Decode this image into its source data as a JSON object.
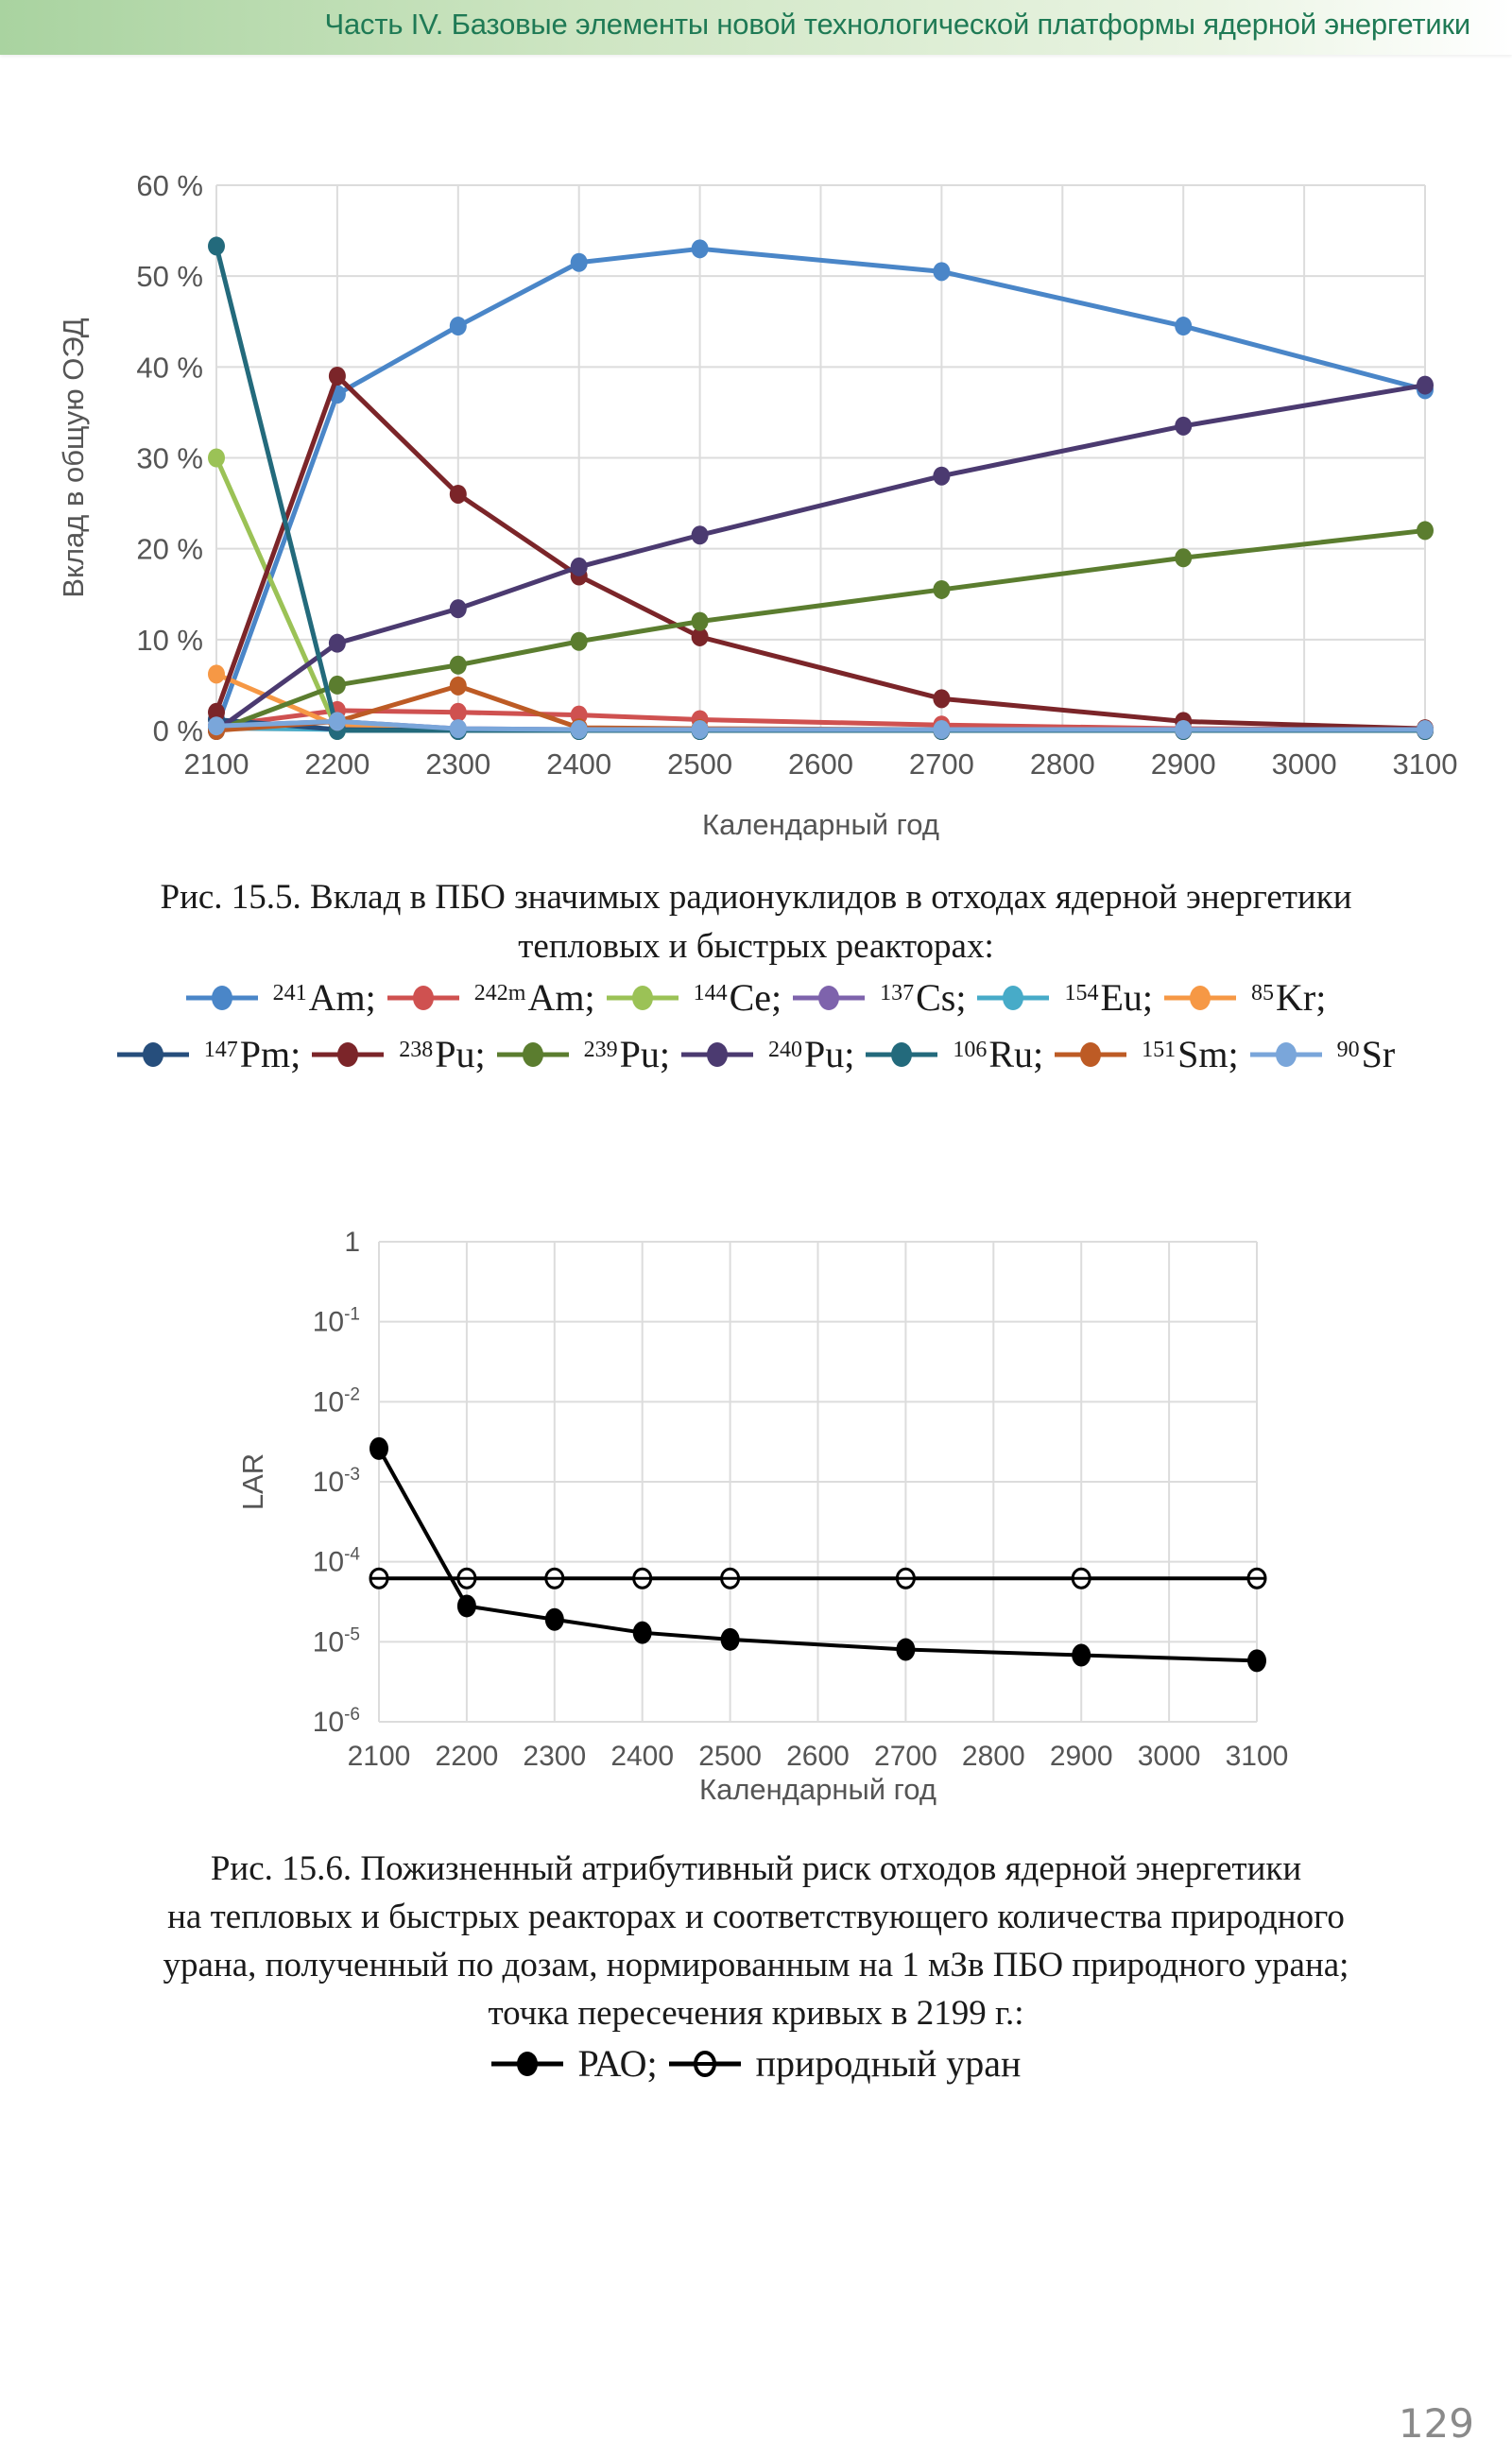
{
  "header": {
    "title": "Часть IV. Базовые элементы новой технологической платформы ядерной энергетики"
  },
  "figure1": {
    "caption_line1": "Рис. 15.5. Вклад в ПБО значимых радионуклидов в отходах ядерной энергетики",
    "caption_line2": "тепловых и быстрых реакторах:"
  },
  "figure2": {
    "caption_lines": [
      "Рис. 15.6. Пожизненный атрибутивный риск отходов ядерной энергетики",
      "на тепловых и быстрых реакторах и соответствующего количества природного",
      "урана, полученный по дозам, нормированным на 1 мЗв ПБО природного урана;",
      "точка пересечения кривых в 2199 г.:"
    ],
    "legend": [
      {
        "label": "РАО;",
        "marker": "filled"
      },
      {
        "label": "природный уран",
        "marker": "open"
      }
    ]
  },
  "page_number": "129",
  "chart_data": [
    {
      "type": "line",
      "title": "",
      "xlabel": "Календарный год",
      "ylabel": "Вклад в общую ОЭД",
      "xlim": [
        2100,
        3100
      ],
      "ylim": [
        0,
        60
      ],
      "x_ticks": [
        "2100",
        "2200",
        "2300",
        "2400",
        "2500",
        "2600",
        "2700",
        "2800",
        "2900",
        "3000",
        "3100"
      ],
      "y_ticks": [
        "0 %",
        "10 %",
        "20 %",
        "30 %",
        "40 %",
        "50 %",
        "60 %"
      ],
      "y_tick_values": [
        0,
        10,
        20,
        30,
        40,
        50,
        60
      ],
      "grid": true,
      "legend_placement": "below",
      "x": [
        2100,
        2200,
        2300,
        2400,
        2500,
        2700,
        2900,
        3100
      ],
      "series": [
        {
          "name": "Am",
          "mass": "241",
          "color": "#4a86c8",
          "values": [
            0.3,
            37,
            44.5,
            51.5,
            53,
            50.5,
            44.5,
            37.5
          ]
        },
        {
          "name": "Am",
          "mass": "242m",
          "color": "#cf5150",
          "values": [
            0.5,
            2.2,
            2.0,
            1.7,
            1.2,
            0.6,
            0.2,
            0.1
          ]
        },
        {
          "name": "Ce",
          "mass": "144",
          "color": "#9bc256",
          "values": [
            30,
            0,
            0,
            0,
            0,
            0,
            0,
            0
          ]
        },
        {
          "name": "Cs",
          "mass": "137",
          "color": "#7e63ac",
          "values": [
            0.5,
            1.0,
            0.2,
            0.1,
            0,
            0,
            0,
            0
          ]
        },
        {
          "name": "Eu",
          "mass": "154",
          "color": "#47abc8",
          "values": [
            0.3,
            0.1,
            0,
            0,
            0,
            0,
            0,
            0
          ]
        },
        {
          "name": "Kr",
          "mass": "85",
          "color": "#f69845",
          "values": [
            6.2,
            0.5,
            0,
            0,
            0,
            0,
            0,
            0
          ]
        },
        {
          "name": "Pm",
          "mass": "147",
          "color": "#264e7c",
          "values": [
            1.2,
            0.1,
            0,
            0,
            0,
            0,
            0,
            0
          ]
        },
        {
          "name": "Pu",
          "mass": "238",
          "color": "#7b2529",
          "values": [
            2,
            39,
            26,
            17,
            10.3,
            3.5,
            1.0,
            0.2
          ]
        },
        {
          "name": "Pu",
          "mass": "239",
          "color": "#5b7d2f",
          "values": [
            0,
            5,
            7.2,
            9.8,
            12,
            15.5,
            19,
            22
          ]
        },
        {
          "name": "Pu",
          "mass": "240",
          "color": "#4b3a70",
          "values": [
            0,
            9.6,
            13.4,
            18,
            21.5,
            28,
            33.5,
            38
          ]
        },
        {
          "name": "Ru",
          "mass": "106",
          "color": "#236a7c",
          "values": [
            53.3,
            0,
            0,
            0,
            0,
            0,
            0,
            0
          ]
        },
        {
          "name": "Sm",
          "mass": "151",
          "color": "#bd5b25",
          "values": [
            0,
            1.0,
            4.9,
            0.3,
            0.2,
            0.1,
            0.1,
            0.1
          ]
        },
        {
          "name": "Sr",
          "mass": "90",
          "color": "#7aa6da",
          "values": [
            0.5,
            1.0,
            0.2,
            0.1,
            0.1,
            0.1,
            0.1,
            0.1
          ]
        }
      ]
    },
    {
      "type": "line",
      "title": "",
      "xlabel": "Календарный год",
      "ylabel": "LAR",
      "yscale": "log",
      "xlim": [
        2100,
        3100
      ],
      "ylim": [
        1e-06,
        1
      ],
      "x_ticks": [
        "2100",
        "2200",
        "2300",
        "2400",
        "2500",
        "2600",
        "2700",
        "2800",
        "2900",
        "3000",
        "3100"
      ],
      "y_ticks": [
        {
          "base": "1",
          "exp": ""
        },
        {
          "base": "10",
          "exp": "-1"
        },
        {
          "base": "10",
          "exp": "-2"
        },
        {
          "base": "10",
          "exp": "-3"
        },
        {
          "base": "10",
          "exp": "-4"
        },
        {
          "base": "10",
          "exp": "-5"
        },
        {
          "base": "10",
          "exp": "-6"
        }
      ],
      "y_tick_values": [
        1,
        0.1,
        0.01,
        0.001,
        0.0001,
        1e-05,
        1e-06
      ],
      "grid": true,
      "legend_placement": "below",
      "x": [
        2100,
        2200,
        2300,
        2400,
        2500,
        2700,
        2900,
        3100
      ],
      "series": [
        {
          "name": "РАО",
          "marker": "filled",
          "color": "#000000",
          "values": [
            0.0026,
            2.8e-05,
            1.9e-05,
            1.3e-05,
            1.07e-05,
            8e-06,
            6.8e-06,
            5.8e-06
          ]
        },
        {
          "name": "природный уран",
          "marker": "open",
          "color": "#000000",
          "values": [
            6.2e-05,
            6.2e-05,
            6.2e-05,
            6.2e-05,
            6.2e-05,
            6.2e-05,
            6.2e-05,
            6.2e-05
          ]
        }
      ]
    }
  ]
}
